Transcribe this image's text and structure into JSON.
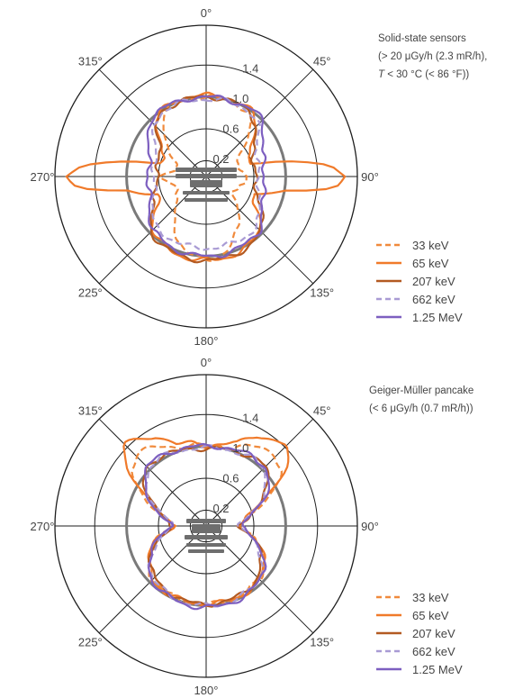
{
  "chart_data": [
    {
      "type": "polar",
      "annotation": [
        "Solid-state sensors",
        "(> 20 μGy/h (2.3 mR/h),",
        "T < 30 °C (< 86 °F))"
      ],
      "angle_ticks": [
        "0°",
        "45°",
        "90°",
        "135°",
        "180°",
        "225°",
        "270°",
        "315°"
      ],
      "radial_ticks": [
        "0.2",
        "0.6",
        "1.0",
        "1.4"
      ],
      "radial_range": [
        0,
        1.9
      ],
      "reference_circle": 1.0,
      "series": [
        {
          "name": "33 keV",
          "color": "#f08a3c",
          "style": "dashed",
          "angles": [
            0,
            20,
            35,
            45,
            55,
            65,
            75,
            80,
            90,
            100,
            105,
            115,
            125,
            135,
            150,
            165,
            180,
            195,
            210,
            225,
            235,
            245,
            255,
            260,
            270,
            280,
            285,
            295,
            305,
            315,
            325,
            340
          ],
          "r": [
            1.0,
            1.0,
            0.95,
            0.75,
            0.55,
            0.42,
            0.4,
            0.42,
            0.55,
            0.48,
            0.42,
            0.4,
            0.42,
            0.55,
            0.78,
            0.98,
            1.05,
            0.98,
            0.78,
            0.55,
            0.42,
            0.4,
            0.42,
            0.48,
            0.55,
            0.42,
            0.4,
            0.42,
            0.55,
            0.75,
            0.95,
            1.0
          ]
        },
        {
          "name": "65 keV",
          "color": "#f07a2a",
          "style": "solid",
          "angles": [
            0,
            20,
            35,
            45,
            55,
            65,
            75,
            80,
            85,
            90,
            95,
            100,
            110,
            120,
            135,
            150,
            165,
            180,
            195,
            210,
            225,
            240,
            250,
            260,
            265,
            270,
            275,
            280,
            285,
            295,
            305,
            315,
            325,
            340
          ],
          "r": [
            1.02,
            1.02,
            1.0,
            0.9,
            0.7,
            0.55,
            0.6,
            1.1,
            1.6,
            1.75,
            1.6,
            1.0,
            0.65,
            0.7,
            0.95,
            1.02,
            1.05,
            1.05,
            1.05,
            1.02,
            0.95,
            0.7,
            0.65,
            1.0,
            1.6,
            1.75,
            1.6,
            1.1,
            0.6,
            0.55,
            0.7,
            0.9,
            1.0,
            1.02
          ]
        },
        {
          "name": "207 keV",
          "color": "#b35a22",
          "style": "solid",
          "angles": [
            0,
            20,
            35,
            45,
            55,
            65,
            75,
            85,
            90,
            95,
            105,
            115,
            125,
            135,
            150,
            165,
            180,
            195,
            210,
            225,
            235,
            245,
            255,
            265,
            270,
            275,
            285,
            295,
            305,
            315,
            325,
            340
          ],
          "r": [
            1.0,
            1.0,
            0.98,
            0.88,
            0.72,
            0.65,
            0.62,
            0.62,
            0.62,
            0.62,
            0.65,
            0.72,
            0.85,
            0.98,
            1.03,
            1.05,
            1.05,
            1.05,
            1.03,
            0.98,
            0.85,
            0.72,
            0.65,
            0.62,
            0.62,
            0.62,
            0.62,
            0.65,
            0.72,
            0.88,
            0.98,
            1.0
          ]
        },
        {
          "name": "662 keV",
          "color": "#a99bd4",
          "style": "dashed",
          "angles": [
            0,
            20,
            35,
            45,
            55,
            65,
            75,
            85,
            90,
            95,
            105,
            115,
            125,
            135,
            150,
            165,
            180,
            195,
            210,
            225,
            235,
            245,
            255,
            265,
            270,
            275,
            285,
            295,
            305,
            315,
            325,
            340
          ],
          "r": [
            0.97,
            0.98,
            0.98,
            0.92,
            0.78,
            0.7,
            0.67,
            0.66,
            0.66,
            0.66,
            0.67,
            0.72,
            0.82,
            0.9,
            0.9,
            0.9,
            0.9,
            0.9,
            0.9,
            0.9,
            0.82,
            0.72,
            0.67,
            0.66,
            0.66,
            0.66,
            0.67,
            0.7,
            0.78,
            0.92,
            0.98,
            0.98
          ]
        },
        {
          "name": "1.25 MeV",
          "color": "#7d5fc0",
          "style": "solid",
          "angles": [
            0,
            20,
            35,
            45,
            55,
            65,
            75,
            85,
            90,
            95,
            105,
            115,
            125,
            135,
            150,
            165,
            180,
            195,
            210,
            225,
            235,
            245,
            255,
            265,
            270,
            275,
            285,
            295,
            305,
            315,
            325,
            340
          ],
          "r": [
            1.0,
            1.0,
            1.02,
            1.0,
            0.88,
            0.78,
            0.74,
            0.73,
            0.73,
            0.73,
            0.74,
            0.78,
            0.86,
            0.95,
            0.98,
            1.0,
            1.0,
            1.0,
            0.98,
            0.95,
            0.86,
            0.78,
            0.74,
            0.73,
            0.73,
            0.73,
            0.74,
            0.78,
            0.88,
            1.0,
            1.02,
            1.0
          ]
        }
      ]
    },
    {
      "type": "polar",
      "annotation": [
        "Geiger-Müller pancake",
        "(< 6 μGy/h (0.7 mR/h))"
      ],
      "angle_ticks": [
        "0°",
        "45°",
        "90°",
        "135°",
        "180°",
        "225°",
        "270°",
        "315°"
      ],
      "radial_ticks": [
        "0.2",
        "0.6",
        "1.0",
        "1.4"
      ],
      "radial_range": [
        0,
        1.9
      ],
      "reference_circle": 1.0,
      "series": [
        {
          "name": "33 keV",
          "color": "#f08a3c",
          "style": "dashed",
          "angles": [
            0,
            20,
            35,
            45,
            55,
            65,
            75,
            85,
            90,
            95,
            105,
            115,
            125,
            135,
            150,
            165,
            180,
            195,
            210,
            225,
            235,
            245,
            255,
            265,
            270,
            275,
            285,
            295,
            305,
            315,
            325,
            340
          ],
          "r": [
            1.0,
            1.05,
            1.2,
            1.25,
            1.15,
            0.85,
            0.6,
            0.45,
            0.4,
            0.45,
            0.65,
            0.78,
            0.88,
            0.95,
            0.97,
            0.98,
            0.98,
            0.98,
            0.97,
            0.95,
            0.88,
            0.78,
            0.65,
            0.45,
            0.4,
            0.45,
            0.6,
            0.85,
            1.15,
            1.25,
            1.2,
            1.05
          ]
        },
        {
          "name": "65 keV",
          "color": "#f07a2a",
          "style": "solid",
          "angles": [
            0,
            20,
            30,
            40,
            45,
            55,
            65,
            75,
            85,
            90,
            95,
            105,
            115,
            125,
            135,
            150,
            165,
            180,
            195,
            210,
            225,
            235,
            245,
            255,
            265,
            270,
            275,
            285,
            295,
            305,
            315,
            320,
            330,
            340
          ],
          "r": [
            1.0,
            1.1,
            1.3,
            1.4,
            1.45,
            1.2,
            0.8,
            0.55,
            0.42,
            0.4,
            0.45,
            0.65,
            0.78,
            0.88,
            0.95,
            0.98,
            0.98,
            0.98,
            0.98,
            0.98,
            0.95,
            0.88,
            0.78,
            0.65,
            0.45,
            0.4,
            0.42,
            0.55,
            0.8,
            1.2,
            1.45,
            1.4,
            1.3,
            1.1
          ]
        },
        {
          "name": "207 keV",
          "color": "#b35a22",
          "style": "solid",
          "angles": [
            0,
            20,
            35,
            45,
            55,
            65,
            75,
            85,
            90,
            95,
            105,
            115,
            125,
            135,
            150,
            165,
            180,
            195,
            210,
            225,
            235,
            245,
            255,
            265,
            270,
            275,
            285,
            295,
            305,
            315,
            325,
            340
          ],
          "r": [
            0.97,
            1.0,
            1.05,
            1.05,
            0.95,
            0.78,
            0.58,
            0.45,
            0.42,
            0.45,
            0.62,
            0.75,
            0.85,
            0.92,
            0.96,
            0.98,
            0.98,
            0.98,
            0.96,
            0.92,
            0.85,
            0.75,
            0.62,
            0.45,
            0.42,
            0.45,
            0.58,
            0.78,
            0.95,
            1.05,
            1.05,
            1.0
          ]
        },
        {
          "name": "662 keV",
          "color": "#a99bd4",
          "style": "dashed",
          "angles": [
            0,
            20,
            35,
            45,
            55,
            65,
            75,
            85,
            90,
            95,
            105,
            115,
            125,
            135,
            150,
            165,
            180,
            195,
            210,
            225,
            235,
            245,
            255,
            265,
            270,
            275,
            285,
            295,
            305,
            315,
            325,
            340
          ],
          "r": [
            0.98,
            1.0,
            1.03,
            1.02,
            0.93,
            0.76,
            0.56,
            0.44,
            0.42,
            0.44,
            0.6,
            0.74,
            0.86,
            0.94,
            0.98,
            1.0,
            1.0,
            1.0,
            0.98,
            0.94,
            0.86,
            0.74,
            0.6,
            0.44,
            0.42,
            0.44,
            0.56,
            0.76,
            0.93,
            1.02,
            1.03,
            1.0
          ]
        },
        {
          "name": "1.25 MeV",
          "color": "#7d5fc0",
          "style": "solid",
          "angles": [
            0,
            20,
            35,
            45,
            55,
            65,
            75,
            85,
            90,
            95,
            105,
            115,
            125,
            135,
            150,
            165,
            180,
            195,
            210,
            225,
            235,
            245,
            255,
            265,
            270,
            275,
            285,
            295,
            305,
            315,
            325,
            340
          ],
          "r": [
            1.0,
            1.02,
            1.05,
            1.05,
            0.96,
            0.8,
            0.6,
            0.47,
            0.44,
            0.47,
            0.63,
            0.77,
            0.88,
            0.96,
            1.0,
            1.02,
            1.02,
            1.02,
            1.0,
            0.96,
            0.88,
            0.77,
            0.63,
            0.47,
            0.44,
            0.47,
            0.6,
            0.8,
            0.96,
            1.05,
            1.05,
            1.02
          ]
        }
      ]
    }
  ]
}
